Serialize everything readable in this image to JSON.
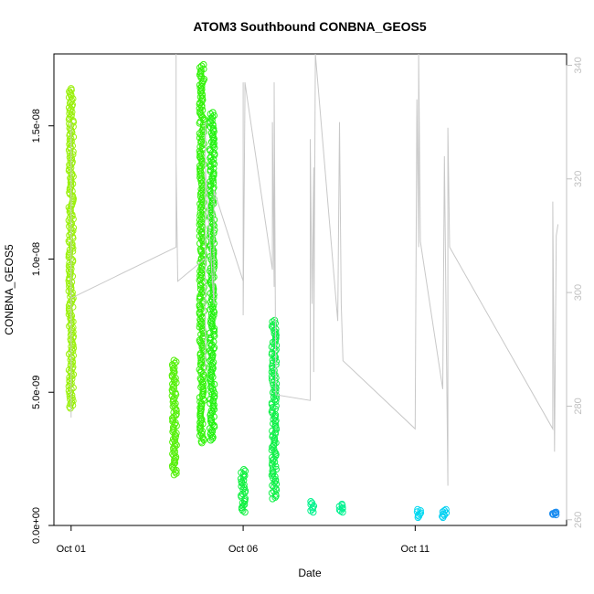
{
  "chart_data": {
    "type": "scatter",
    "title": "ATOM3 Southbound CONBNA_GEOS5",
    "xlabel": "Date",
    "ylabel": "CONBNA_GEOS5",
    "ylabel_right": "",
    "x_unit": "days since Oct 01",
    "xlim": [
      -0.5,
      14.4
    ],
    "ylim": [
      0,
      1.77e-08
    ],
    "y2lim": [
      259,
      342
    ],
    "x_ticks": [
      {
        "value": 0,
        "label": "Oct 01"
      },
      {
        "value": 5,
        "label": "Oct 06"
      },
      {
        "value": 10,
        "label": "Oct 11"
      }
    ],
    "y_ticks": [
      {
        "value": 0,
        "label": "0.0e+00"
      },
      {
        "value": 5e-09,
        "label": "5.0e-09"
      },
      {
        "value": 1e-08,
        "label": "1.0e-08"
      },
      {
        "value": 1.5e-08,
        "label": "1.5e-08"
      }
    ],
    "y2_ticks": [
      {
        "value": 260,
        "label": "260"
      },
      {
        "value": 280,
        "label": "280"
      },
      {
        "value": 300,
        "label": "300"
      },
      {
        "value": 320,
        "label": "320"
      },
      {
        "value": 340,
        "label": "340"
      }
    ],
    "grid": false,
    "colors": {
      "axis": "#000000",
      "right_axis": "#c0c0c0",
      "secondary_line": "#c8c8c8"
    },
    "clusters": [
      {
        "x": 0.0,
        "y_min": 4.4e-09,
        "y_max": 1.64e-08,
        "color": "#99f00a"
      },
      {
        "x": 3.0,
        "y_min": 1.9e-09,
        "y_max": 6.2e-09,
        "color": "#55f00a"
      },
      {
        "x": 3.8,
        "y_min": 3.1e-09,
        "y_max": 1.73e-08,
        "color": "#33f20a"
      },
      {
        "x": 4.1,
        "y_min": 3.2e-09,
        "y_max": 1.55e-08,
        "color": "#22f210"
      },
      {
        "x": 5.0,
        "y_min": 5e-10,
        "y_max": 2.1e-09,
        "color": "#10f040"
      },
      {
        "x": 5.9,
        "y_min": 1e-09,
        "y_max": 7.7e-09,
        "color": "#10f048"
      },
      {
        "x": 7.0,
        "y_min": 5e-10,
        "y_max": 9e-10,
        "color": "#00f28c"
      },
      {
        "x": 7.85,
        "y_min": 5e-10,
        "y_max": 8e-10,
        "color": "#00f290"
      },
      {
        "x": 10.1,
        "y_min": 3e-10,
        "y_max": 6e-10,
        "color": "#00d8f0"
      },
      {
        "x": 10.85,
        "y_min": 3e-10,
        "y_max": 6e-10,
        "color": "#00d0f2"
      },
      {
        "x": 14.05,
        "y_min": 4e-10,
        "y_max": 5e-10,
        "color": "#1a8cf0"
      }
    ],
    "secondary_series": {
      "name": "",
      "note": "grey line plotted against right axis",
      "points": [
        [
          0.0,
          278
        ],
        [
          0.0,
          330
        ],
        [
          0.0,
          299
        ],
        [
          3.05,
          308
        ],
        [
          3.05,
          343
        ],
        [
          3.05,
          323
        ],
        [
          3.1,
          302
        ],
        [
          3.9,
          306
        ],
        [
          3.9,
          330
        ],
        [
          3.9,
          286
        ],
        [
          3.9,
          322
        ],
        [
          4.15,
          298
        ],
        [
          4.15,
          318
        ],
        [
          5.0,
          302
        ],
        [
          5.0,
          337
        ],
        [
          5.0,
          296
        ],
        [
          5.05,
          334
        ],
        [
          5.05,
          337
        ],
        [
          5.85,
          304
        ],
        [
          5.85,
          330
        ],
        [
          5.9,
          301
        ],
        [
          5.9,
          337
        ],
        [
          5.95,
          282
        ],
        [
          6.95,
          281
        ],
        [
          6.95,
          327
        ],
        [
          7.0,
          298
        ],
        [
          7.05,
          322
        ],
        [
          7.05,
          286
        ],
        [
          7.1,
          348
        ],
        [
          7.75,
          295
        ],
        [
          7.8,
          330
        ],
        [
          7.85,
          298
        ],
        [
          7.9,
          288
        ],
        [
          10.0,
          276
        ],
        [
          10.05,
          334
        ],
        [
          10.1,
          308
        ],
        [
          10.1,
          350
        ],
        [
          10.15,
          309
        ],
        [
          10.8,
          283
        ],
        [
          10.85,
          324
        ],
        [
          10.95,
          266
        ],
        [
          10.95,
          329
        ],
        [
          11.0,
          308
        ],
        [
          14.0,
          276
        ],
        [
          14.0,
          316
        ],
        [
          14.05,
          272
        ],
        [
          14.1,
          310
        ],
        [
          14.15,
          312
        ]
      ]
    }
  }
}
